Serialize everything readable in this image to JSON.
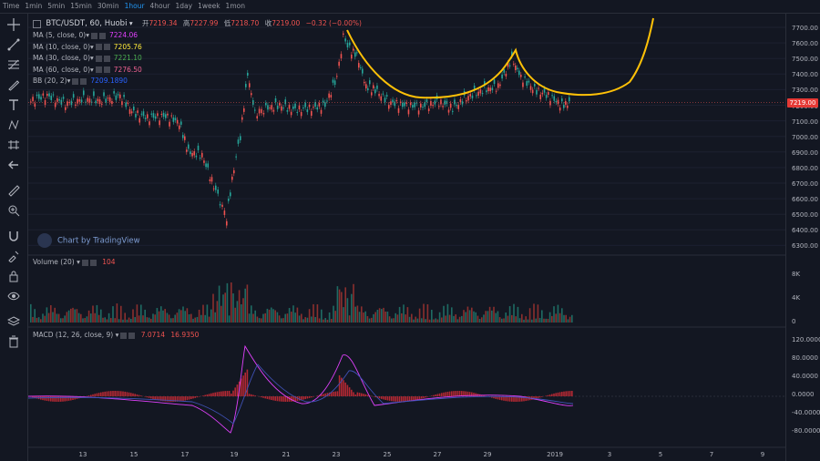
{
  "intervals": [
    "Time",
    "1min",
    "5min",
    "15min",
    "30min",
    "1hour",
    "4hour",
    "1day",
    "1week",
    "1mon"
  ],
  "active_interval": "1hour",
  "symbol": "BTC/USDT, 60, Huobi",
  "ohlc": {
    "open_label": "开",
    "open": "7219.34",
    "high_label": "高",
    "high": "7227.99",
    "low_label": "低",
    "low": "7218.70",
    "close_label": "收",
    "close": "7219.00",
    "change": "−0.32 (−0.00%)"
  },
  "indicators": [
    {
      "name": "MA (5, close, 0)",
      "value": "7224.06",
      "color": "#e040fb"
    },
    {
      "name": "MA (10, close, 0)",
      "value": "7205.76",
      "color": "#ffeb3b"
    },
    {
      "name": "MA (30, close, 0)",
      "value": "7221.10",
      "color": "#4caf50"
    },
    {
      "name": "MA (60, close, 0)",
      "value": "7276.50",
      "color": "#f06292"
    },
    {
      "name": "BB (20, 2)",
      "value": "7209.1890",
      "color": "#2962ff"
    }
  ],
  "volume_legend": {
    "name": "Volume (20)",
    "value": "104"
  },
  "macd_legend": {
    "name": "MACD (12, 26, close, 9)",
    "v1": "7.0714",
    "v2": "16.9350"
  },
  "watermark": "Chart by TradingView",
  "price_axis": [
    "7700.00",
    "7600.00",
    "7500.00",
    "7400.00",
    "7300.00",
    "7200.00",
    "7100.00",
    "7000.00",
    "6900.00",
    "6800.00",
    "6700.00",
    "6600.00",
    "6500.00",
    "6400.00",
    "6300.00"
  ],
  "last_price": "7219.00",
  "volume_axis": [
    "8K",
    "4K",
    "0"
  ],
  "macd_axis": [
    "120.0000",
    "80.0000",
    "40.0000",
    "0.0000",
    "-40.0000",
    "-80.0000"
  ],
  "time_axis": [
    "13",
    "15",
    "17",
    "19",
    "21",
    "23",
    "25",
    "27",
    "29",
    "2019",
    "3",
    "5",
    "7",
    "9"
  ],
  "colors": {
    "up": "#26a69a",
    "down": "#ef5350",
    "annotation": "#ffc107"
  }
}
